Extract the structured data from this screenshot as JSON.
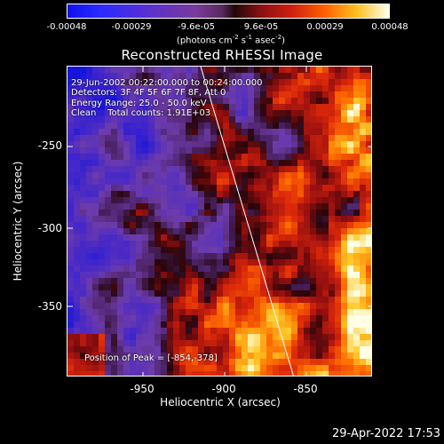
{
  "colorbar": {
    "ticks": [
      "-0.00048",
      "-0.00029",
      "-9.6e-05",
      "9.6e-05",
      "0.00029",
      "0.00048"
    ],
    "units_text": "(photons cm",
    "units_sup1": "-2",
    "units_mid1": " s",
    "units_sup2": "-1",
    "units_mid2": " asec",
    "units_sup3": "-2",
    "units_end": ")"
  },
  "title": "Reconstructed RHESSI Image",
  "info": {
    "line1": "29-Jun-2002 00:22:00.000 to 00:24:00.000",
    "line2": "Detectors: 3F 4F 5F 6F 7F 8F, Att 0",
    "line3": "Energy Range: 25.0 - 50.0 keV",
    "line4": "Clean    Total counts: 1.91E+03"
  },
  "peak": "Position of Peak = [-854,-378]",
  "x_axis": {
    "label": "Heliocentric X (arcsec)",
    "ticks": [
      "-950",
      "-900",
      "-850"
    ]
  },
  "y_axis": {
    "label": "Heliocentric Y (arcsec)",
    "ticks": [
      "-250",
      "-300",
      "-350"
    ]
  },
  "timestamp": "29-Apr-2022 17:53",
  "colors": {
    "background": "#000000",
    "axis": "#ffffff"
  }
}
